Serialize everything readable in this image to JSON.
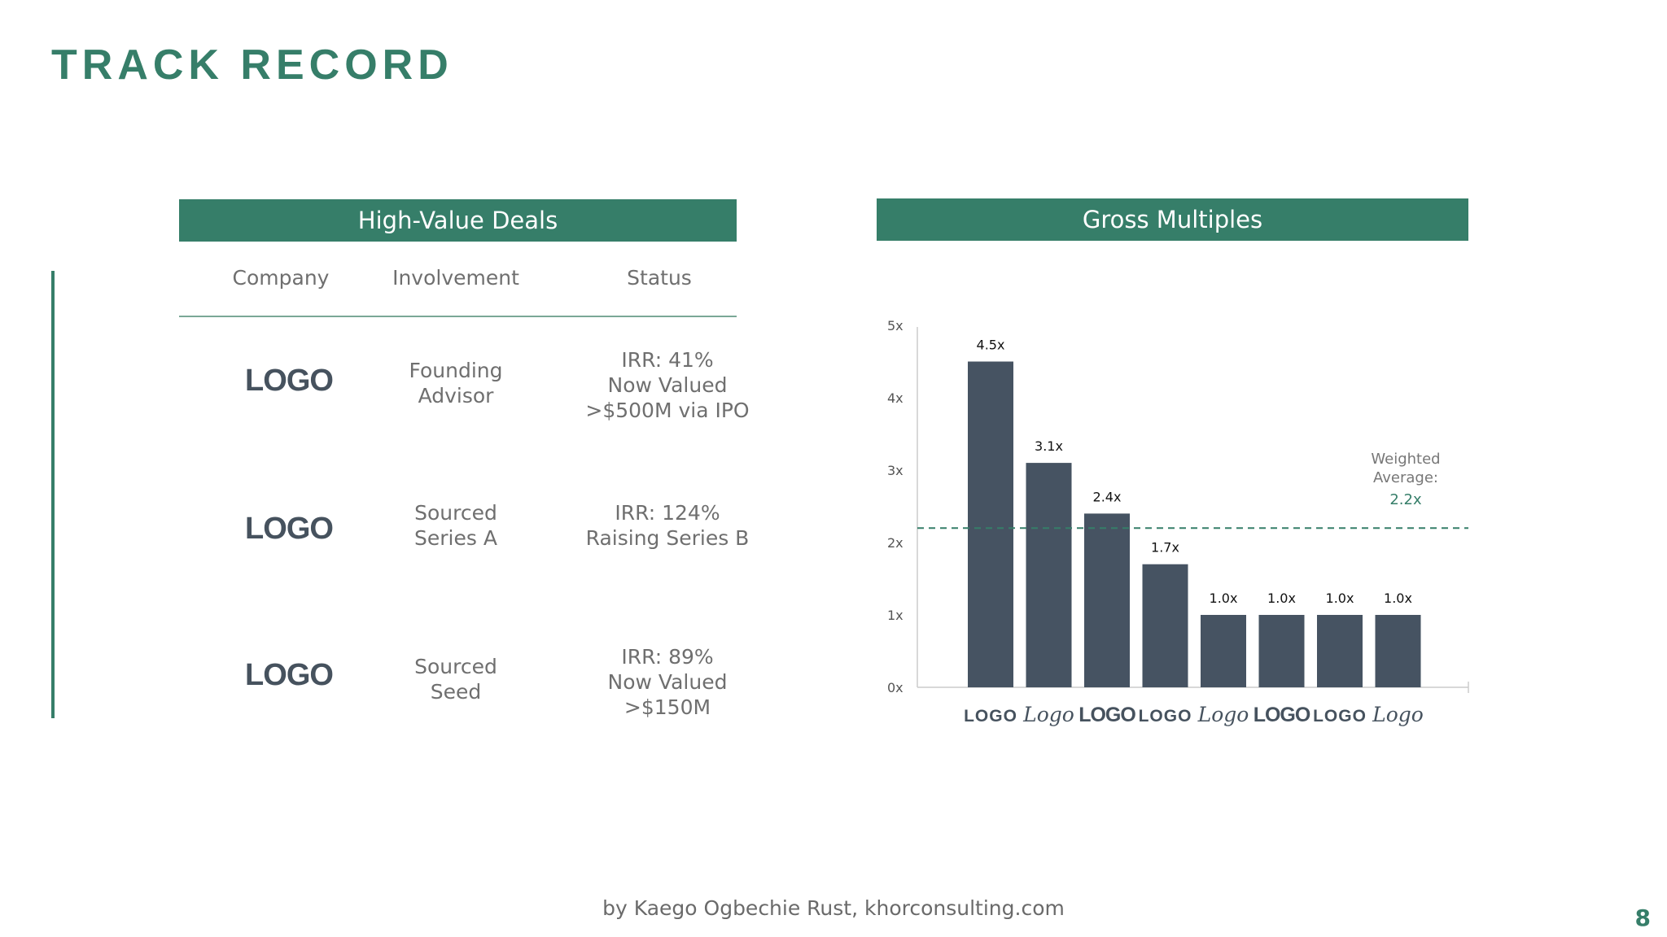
{
  "slide": {
    "title": "TRACK RECORD",
    "footer": "by Kaego Ogbechie Rust, khorconsulting.com",
    "page_number": "8"
  },
  "deals": {
    "header": "High-Value Deals",
    "columns": [
      "Company",
      "Involvement",
      "Status"
    ],
    "rows": [
      {
        "company": "LOGO",
        "involvement": [
          "Founding",
          "Advisor"
        ],
        "status": [
          "IRR: 41%",
          "Now Valued",
          ">$500M via IPO"
        ]
      },
      {
        "company": "LOGO",
        "involvement": [
          "Sourced",
          "Series A"
        ],
        "status": [
          "IRR: 124%",
          "Raising Series B"
        ]
      },
      {
        "company": "LOGO",
        "involvement": [
          "Sourced",
          "Seed"
        ],
        "status": [
          "IRR: 89%",
          "Now Valued",
          ">$150M"
        ]
      }
    ]
  },
  "chart_data": {
    "type": "bar",
    "title": "Gross Multiples",
    "categories": [
      "LOGO",
      "Logo",
      "LOGO",
      "LOGO",
      "Logo",
      "LOGO",
      "LOGO",
      "Logo"
    ],
    "values": [
      4.5,
      3.1,
      2.4,
      1.7,
      1.0,
      1.0,
      1.0,
      1.0
    ],
    "data_labels": [
      "4.5x",
      "3.1x",
      "2.4x",
      "1.7x",
      "1.0x",
      "1.0x",
      "1.0x",
      "1.0x"
    ],
    "yticks": [
      "0x",
      "1x",
      "2x",
      "3x",
      "4x",
      "5x"
    ],
    "ylim": [
      0,
      5
    ],
    "grid": false,
    "reference_line": {
      "value": 2.2,
      "label_lines": [
        "Weighted",
        "Average:"
      ],
      "value_label": "2.2x"
    },
    "colors": {
      "bar": "#465362",
      "accent": "#367e69",
      "axis": "#cccccc"
    },
    "category_styles": [
      "block",
      "script",
      "condensed",
      "block",
      "script",
      "condensed",
      "block",
      "script"
    ]
  }
}
